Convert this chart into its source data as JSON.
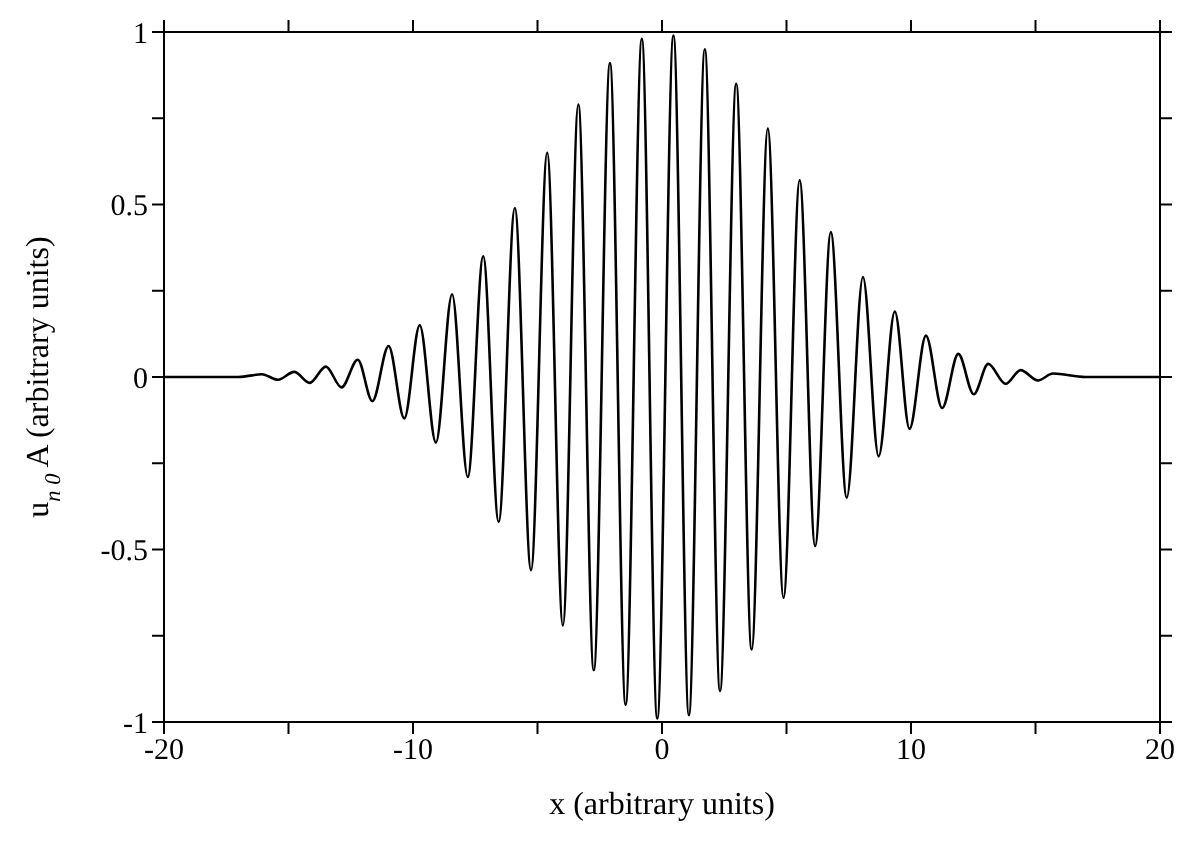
{
  "chart_data": {
    "type": "line",
    "xlabel": "x  (arbitrary units)",
    "ylabel": "u$_{n 0}$ A (arbitrary units)",
    "xlim": [
      -20,
      20
    ],
    "xticks": [
      -20,
      {
        "value": -15,
        "label": null
      },
      -10,
      {
        "value": -5,
        "label": null
      },
      0,
      {
        "value": 5,
        "label": null
      },
      10,
      {
        "value": 15,
        "label": null
      },
      20
    ],
    "ylim": [
      -1,
      1
    ],
    "yticks": [
      -1,
      {
        "value": -0.75,
        "label": null
      },
      -0.5,
      {
        "value": -0.25,
        "label": null
      },
      0,
      {
        "value": 0.25,
        "label": null
      },
      0.5,
      {
        "value": 0.75,
        "label": null
      },
      1
    ],
    "marker": "none",
    "line_style": "solid",
    "series": [
      {
        "color": "#000000",
        "x": [
          -20,
          -17,
          -16.07,
          -15.42,
          -14.77,
          -14.15,
          -13.5,
          -12.87,
          -12.22,
          -11.63,
          -10.98,
          -10.35,
          -9.73,
          -9.08,
          -8.43,
          -7.8,
          -7.18,
          -6.56,
          -5.91,
          -5.26,
          -4.61,
          -3.98,
          -3.36,
          -2.74,
          -2.09,
          -1.46,
          -0.81,
          -0.19,
          0.46,
          1.08,
          1.72,
          2.33,
          2.98,
          3.6,
          4.25,
          4.88,
          5.53,
          6.15,
          6.78,
          7.42,
          8.07,
          8.7,
          9.35,
          9.94,
          10.6,
          11.25,
          11.9,
          12.52,
          13.1,
          13.8,
          14.4,
          15.1,
          15.7,
          17,
          20
        ],
        "values": [
          0,
          0,
          0.008,
          -0.008,
          0.015,
          -0.017,
          0.03,
          -0.03,
          0.05,
          -0.07,
          0.09,
          -0.12,
          0.15,
          -0.19,
          0.24,
          -0.29,
          0.35,
          -0.42,
          0.49,
          -0.56,
          0.65,
          -0.72,
          0.79,
          -0.85,
          0.91,
          -0.95,
          0.98,
          -0.99,
          0.99,
          -0.98,
          0.95,
          -0.91,
          0.85,
          -0.79,
          0.72,
          -0.64,
          0.57,
          -0.49,
          0.42,
          -0.35,
          0.29,
          -0.23,
          0.19,
          -0.15,
          0.12,
          -0.09,
          0.067,
          -0.05,
          0.038,
          -0.02,
          0.02,
          -0.01,
          0.01,
          0,
          0
        ]
      }
    ]
  }
}
